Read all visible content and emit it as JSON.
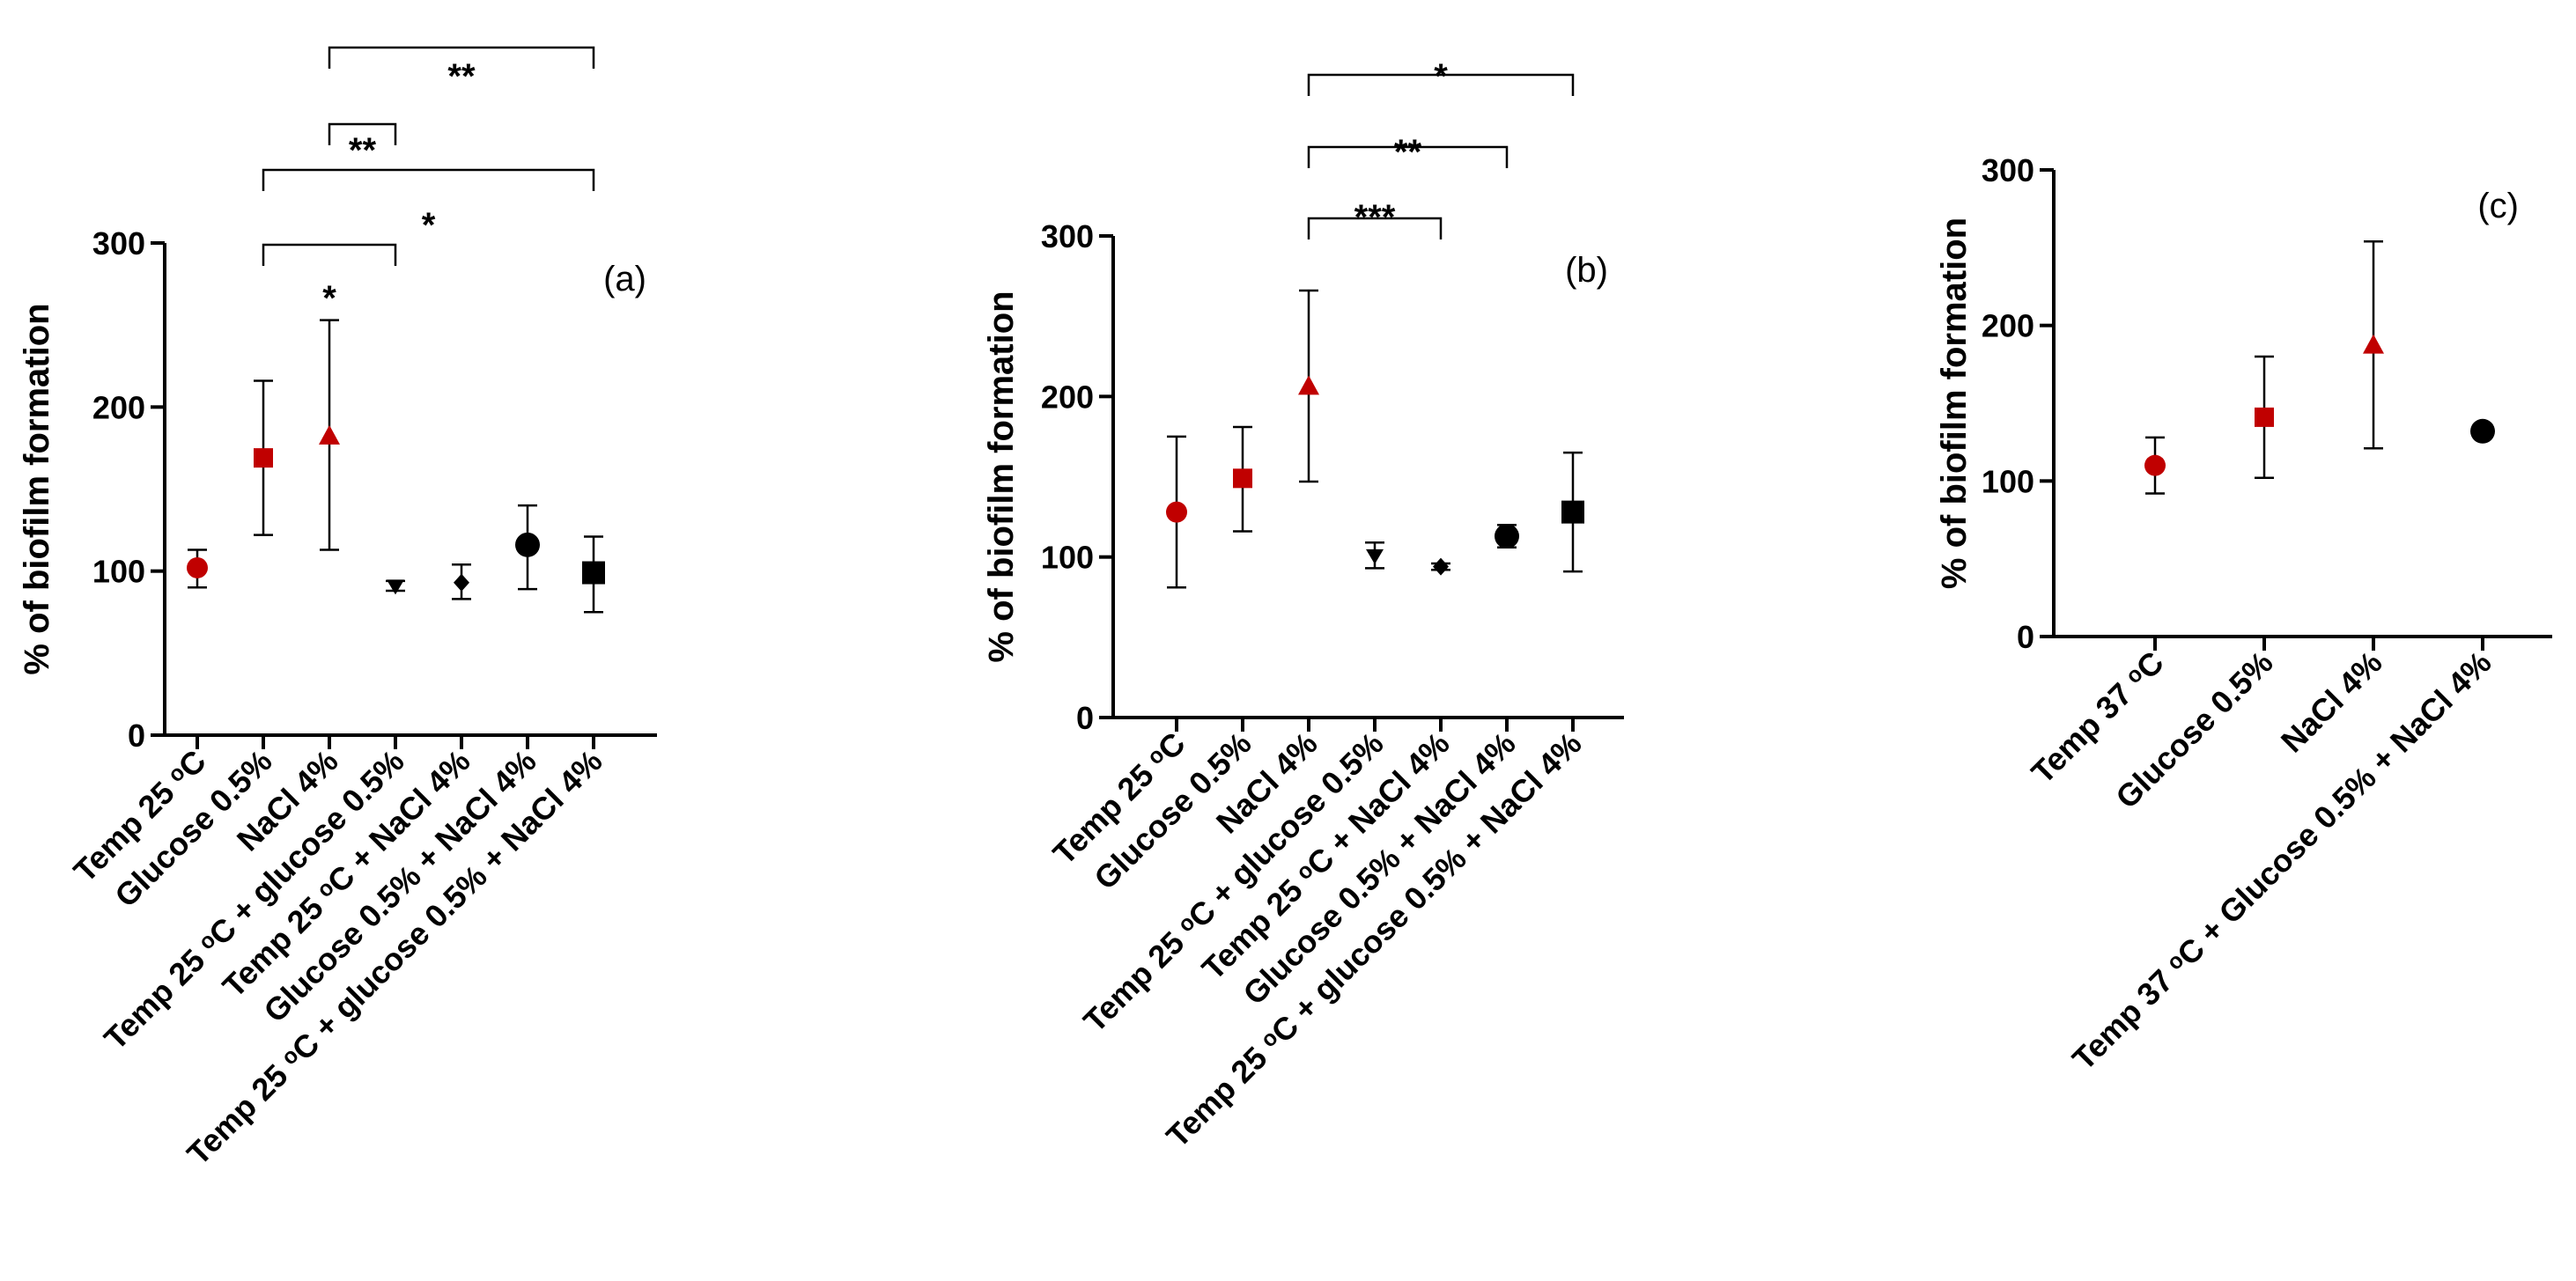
{
  "colors": {
    "red": "#c00000",
    "black": "#000000"
  },
  "chart_data": [
    {
      "type": "scatter",
      "panel": "(a)",
      "ylabel": "% of biofilm formation",
      "ylim": [
        0,
        300
      ],
      "yticks": [
        0,
        100,
        200,
        300
      ],
      "categories": [
        "Temp 25 ᵒC",
        "Glucose 0.5%",
        "NaCl 4%",
        "Temp 25 ᵒC + glucose 0.5%",
        "Temp 25 ᵒC + NaCl 4%",
        "Glucose 0.5% + NaCl 4%",
        "Temp 25 ᵒC + glucose 0.5% + NaCl 4%"
      ],
      "points": [
        {
          "mean": 102,
          "lo": 90,
          "hi": 113,
          "marker": "circle",
          "color": "red"
        },
        {
          "mean": 169,
          "lo": 122,
          "hi": 216,
          "marker": "square",
          "color": "red"
        },
        {
          "mean": 182,
          "lo": 113,
          "hi": 253,
          "marker": "triangle",
          "color": "red"
        },
        {
          "mean": 91,
          "lo": 88,
          "hi": 94,
          "marker": "triangle-down",
          "color": "black"
        },
        {
          "mean": 93,
          "lo": 83,
          "hi": 104,
          "marker": "diamond",
          "color": "black"
        },
        {
          "mean": 116,
          "lo": 89,
          "hi": 140,
          "marker": "circle-big",
          "color": "black"
        },
        {
          "mean": 99,
          "lo": 75,
          "hi": 121,
          "marker": "square",
          "color": "black"
        }
      ],
      "significance": [
        {
          "from": 1,
          "to": 3,
          "label": "*"
        },
        {
          "from": 1,
          "to": 6,
          "label": "*"
        },
        {
          "from": 2,
          "to": 3,
          "label": "**"
        },
        {
          "from": 2,
          "to": 6,
          "label": "**"
        }
      ]
    },
    {
      "type": "scatter",
      "panel": "(b)",
      "ylabel": "% of biofilm formation",
      "ylim": [
        0,
        300
      ],
      "yticks": [
        0,
        100,
        200,
        300
      ],
      "categories": [
        "Temp 25 ᵒC",
        "Glucose 0.5%",
        "NaCl 4%",
        "Temp 25 ᵒC + glucose 0.5%",
        "Temp 25 ᵒC + NaCl 4%",
        "Glucose 0.5% + NaCl 4%",
        "Temp 25 ᵒC + glucose 0.5% + NaCl 4%"
      ],
      "points": [
        {
          "mean": 128,
          "lo": 81,
          "hi": 175,
          "marker": "circle",
          "color": "red"
        },
        {
          "mean": 149,
          "lo": 116,
          "hi": 181,
          "marker": "square",
          "color": "red"
        },
        {
          "mean": 206,
          "lo": 147,
          "hi": 266,
          "marker": "triangle",
          "color": "red"
        },
        {
          "mean": 101,
          "lo": 93,
          "hi": 109,
          "marker": "triangle-down",
          "color": "black"
        },
        {
          "mean": 94,
          "lo": 92,
          "hi": 96,
          "marker": "diamond",
          "color": "black"
        },
        {
          "mean": 113,
          "lo": 106,
          "hi": 120,
          "marker": "circle-big",
          "color": "black"
        },
        {
          "mean": 128,
          "lo": 91,
          "hi": 165,
          "marker": "square",
          "color": "black"
        }
      ],
      "significance": [
        {
          "from": 2,
          "to": 4,
          "label": "***"
        },
        {
          "from": 2,
          "to": 5,
          "label": "**"
        },
        {
          "from": 2,
          "to": 6,
          "label": "*"
        }
      ]
    },
    {
      "type": "scatter",
      "panel": "(c)",
      "ylabel": "% of biofilm formation",
      "ylim": [
        0,
        300
      ],
      "yticks": [
        0,
        100,
        200,
        300
      ],
      "categories": [
        "Temp 37 ᵒC",
        "Glucose 0.5%",
        "NaCl 4%",
        "Temp 37 ᵒC + Glucose 0.5% + NaCl 4%"
      ],
      "points": [
        {
          "mean": 110,
          "lo": 92,
          "hi": 128,
          "marker": "circle",
          "color": "red"
        },
        {
          "mean": 141,
          "lo": 102,
          "hi": 180,
          "marker": "square",
          "color": "red"
        },
        {
          "mean": 187,
          "lo": 121,
          "hi": 254,
          "marker": "triangle",
          "color": "red"
        },
        {
          "mean": 132,
          "lo": 132,
          "hi": 132,
          "marker": "circle-big",
          "color": "black"
        }
      ],
      "significance": []
    }
  ]
}
